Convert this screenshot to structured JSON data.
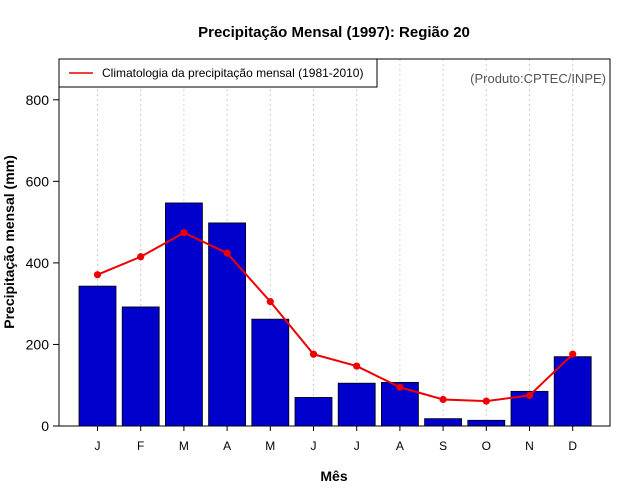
{
  "chart_data": {
    "type": "bar",
    "title": "Precipitação Mensal (1997): Região 20",
    "xlabel": "Mês",
    "ylabel": "Precipitação mensal (mm)",
    "ylim": [
      0,
      900
    ],
    "yticks": [
      0,
      200,
      400,
      600,
      800
    ],
    "categories": [
      "J",
      "F",
      "M",
      "A",
      "M",
      "J",
      "J",
      "A",
      "S",
      "O",
      "N",
      "D"
    ],
    "series": [
      {
        "name": "Precipitação mensal (1997)",
        "type": "bar",
        "color": "#0000cc",
        "values": [
          343,
          292,
          547,
          498,
          262,
          70,
          105,
          107,
          18,
          14,
          85,
          170
        ]
      },
      {
        "name": "Climatologia da precipitação mensal (1981-2010)",
        "type": "line",
        "color": "#ee0000",
        "values": [
          371,
          415,
          474,
          424,
          305,
          176,
          147,
          95,
          65,
          61,
          75,
          176
        ]
      }
    ],
    "legend_label": "Climatologia da precipitação mensal (1981-2010)",
    "legend_position": "top-left",
    "credit": "(Produto:CPTEC/INPE)",
    "grid": "vertical-dotted"
  }
}
